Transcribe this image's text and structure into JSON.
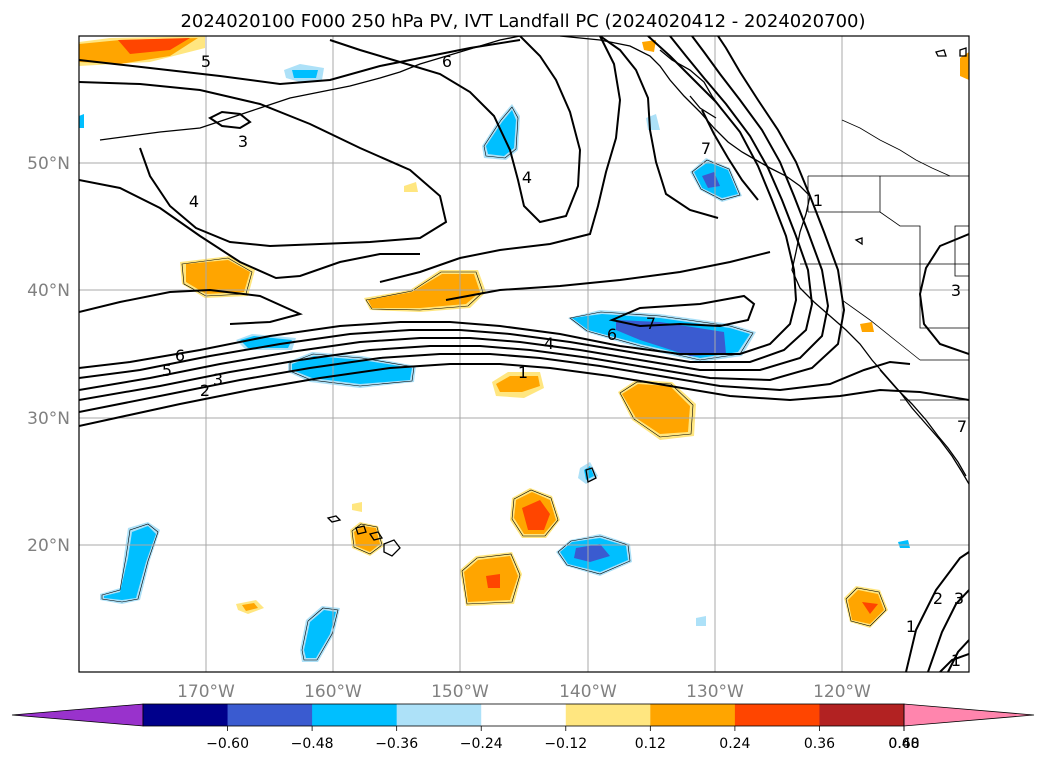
{
  "title": "2024020100 F000 250 hPa PV, IVT Landfall PC (2024020412 - 2024020700)",
  "axes": {
    "lat_labels": [
      "50°N",
      "40°N",
      "30°N",
      "20°N"
    ],
    "lon_labels": [
      "170°W",
      "160°W",
      "150°W",
      "140°W",
      "130°W",
      "120°W"
    ],
    "lat_range": [
      10,
      60
    ],
    "lon_range": [
      -180,
      -110
    ],
    "grid": true
  },
  "colorbar": {
    "ticks": [
      "−0.60",
      "−0.48",
      "−0.36",
      "−0.24",
      "−0.12",
      "0.12",
      "0.24",
      "0.36",
      "0.48",
      "0.60"
    ],
    "colors": [
      "#9932cc",
      "#00008b",
      "#3a5bd0",
      "#00bfff",
      "#ade1f8",
      "#ffffff",
      "#ffe680",
      "#ffa500",
      "#ff4500",
      "#b22222",
      "#ff85ad"
    ],
    "extend": "both"
  },
  "contour_labels": {
    "top_5": "5",
    "top_6": "6",
    "aleutian_3": "3",
    "west_4": "4",
    "central_4": "4",
    "coast_7": "7",
    "coast_1": "1",
    "jet_6": "6",
    "jet_5": "5",
    "jet_3": "3",
    "jet_2": "2",
    "ridge_7": "7",
    "ridge_6": "6",
    "jet_4": "4",
    "jet_1": "1",
    "sw_1": "1",
    "sw_2": "2",
    "sw_3": "3",
    "sw_1b": "1",
    "baja_3": "3",
    "coast_7b": "7"
  },
  "colors": {
    "gridline": "#a9a9a9",
    "contour": "#000000"
  }
}
